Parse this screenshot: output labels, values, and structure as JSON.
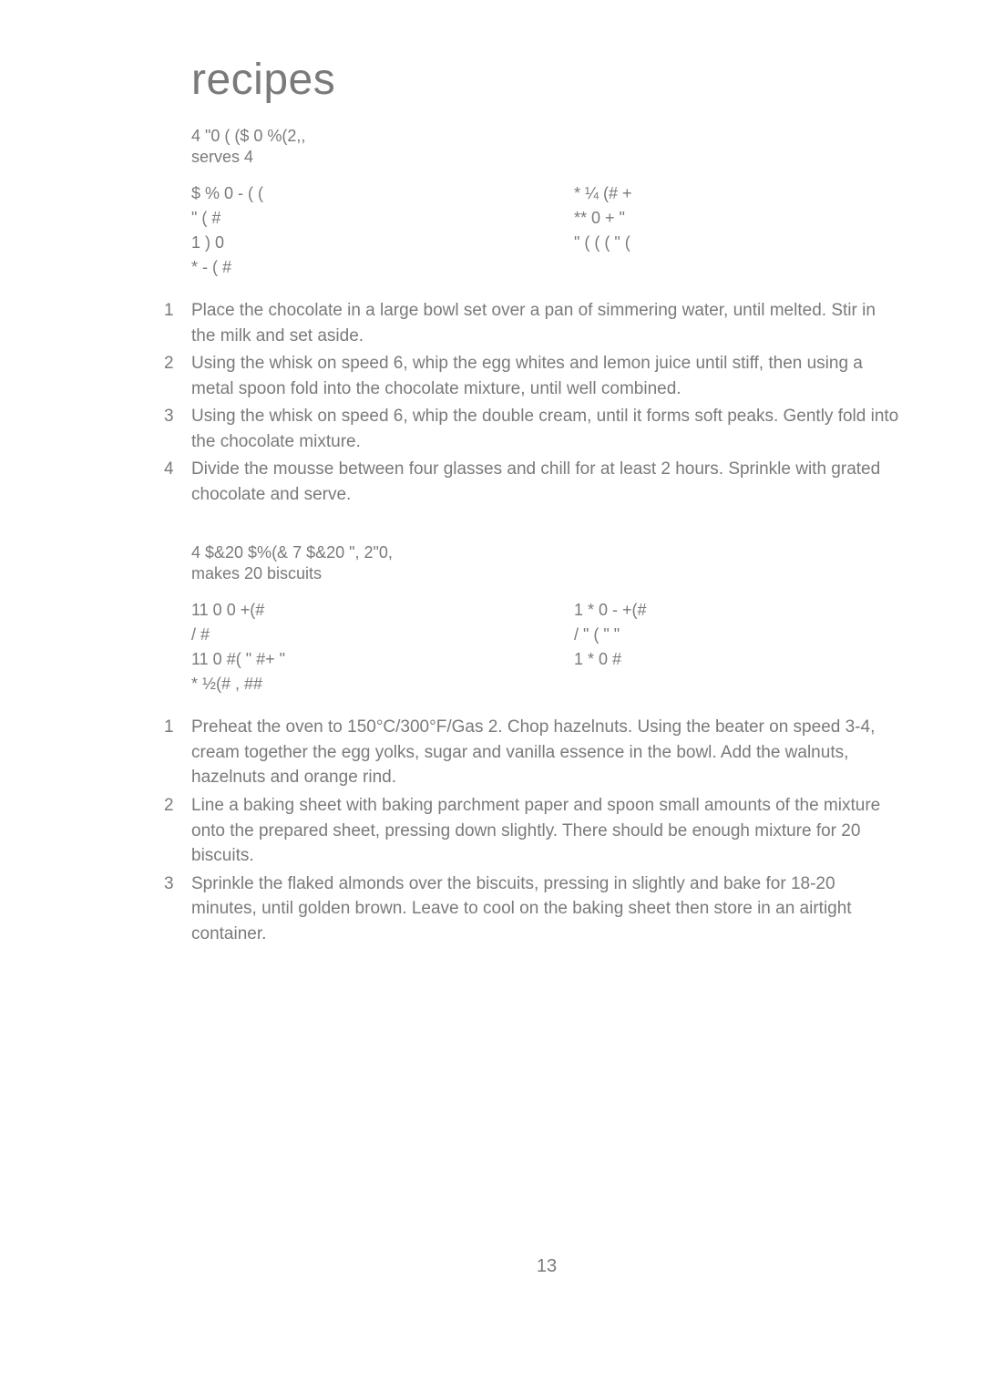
{
  "page_title": "recipes",
  "page_number": "13",
  "recipe1": {
    "title": "4 \"0   ( ($ 0  %(2,,",
    "serves": "serves 4",
    "ing_left": [
      "$    % 0  -  (          (",
      "\"       (      #",
      "1    )    0",
      "*     -  ( #"
    ],
    "ing_right": [
      "*                       ¼ (#           +",
      "**         0   +      \"",
      "  \" (              (   (      \" ("
    ],
    "steps": [
      "Place the chocolate in a large bowl set over a pan of simmering water, until melted. Stir in the milk and set aside.",
      "Using the whisk on speed 6, whip the egg whites and lemon juice until stiff, then using a metal spoon fold into the chocolate mixture, until well combined.",
      "Using the whisk on speed 6, whip the double cream, until it forms soft peaks. Gently fold into the chocolate mixture.",
      "Divide the mousse between four glasses and chill for at least 2 hours. Sprinkle with grated chocolate and serve."
    ]
  },
  "recipe2": {
    "title": "4 $&20   $%(&      7 $&20  \", 2\"0,",
    "makes": "makes 20 biscuits",
    "ing_left": [
      "11    0   0   +(#",
      "     /  #",
      "11    0   #( \" #+  \"",
      "*         ½(#   ,       ##"
    ],
    "ing_right": [
      "1   * 0         -  +(#",
      "    /  \" (   \"          \"",
      "1   * 0             #"
    ],
    "steps": [
      "Preheat the oven to 150°C/300°F/Gas 2. Chop hazelnuts. Using the beater on speed 3-4, cream together the egg yolks, sugar and vanilla essence in the bowl. Add the walnuts, hazelnuts and orange rind.",
      "Line a baking sheet with baking parchment paper and spoon small amounts of the mixture onto the prepared sheet, pressing down slightly. There should be enough mixture for 20 biscuits.",
      "Sprinkle the flaked almonds over the biscuits, pressing in slightly and bake for 18-20 minutes, until golden brown. Leave to cool on the baking sheet then store in an airtight container."
    ]
  }
}
